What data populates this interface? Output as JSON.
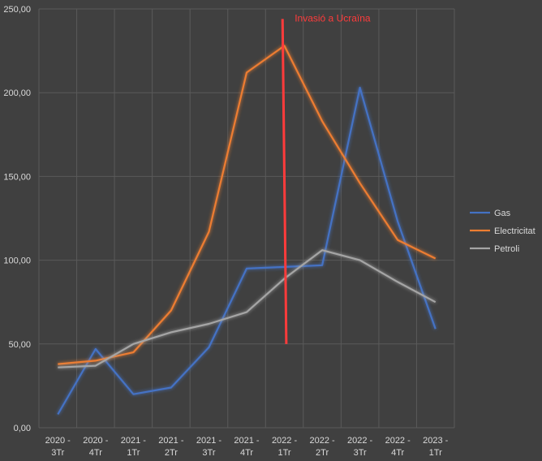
{
  "chart_data": {
    "type": "line",
    "title": "",
    "xlabel": "",
    "ylabel": "",
    "ylim": [
      0,
      250
    ],
    "yticks": [
      "0,00",
      "50,00",
      "100,00",
      "150,00",
      "200,00",
      "250,00"
    ],
    "ytick_values": [
      0,
      50,
      100,
      150,
      200,
      250
    ],
    "categories": [
      [
        "2020 -",
        "3Tr"
      ],
      [
        "2020 -",
        "4Tr"
      ],
      [
        "2021 -",
        "1Tr"
      ],
      [
        "2021 -",
        "2Tr"
      ],
      [
        "2021 -",
        "3Tr"
      ],
      [
        "2021 -",
        "4Tr"
      ],
      [
        "2022 -",
        "1Tr"
      ],
      [
        "2022 -",
        "2Tr"
      ],
      [
        "2022 -",
        "3Tr"
      ],
      [
        "2022 -",
        "4Tr"
      ],
      [
        "2023 -",
        "1Tr"
      ]
    ],
    "grid": true,
    "legend_position": "right",
    "series": [
      {
        "name": "Gas",
        "color": "#4472c4",
        "values": [
          8,
          47,
          20,
          24,
          48,
          95,
          96,
          97,
          203,
          123,
          59
        ]
      },
      {
        "name": "Electricitat",
        "color": "#ed7d31",
        "values": [
          38,
          40,
          45,
          70,
          117,
          212,
          228,
          183,
          146,
          112,
          101
        ]
      },
      {
        "name": "Petroli",
        "color": "#a5a5a5",
        "values": [
          36,
          37,
          50,
          57,
          62,
          69,
          89,
          106,
          100,
          87,
          75
        ]
      }
    ],
    "annotation": {
      "text": "Invasió a Ucraïna",
      "color": "#ff3b3b",
      "from": {
        "x": 5.95,
        "y": 244
      },
      "to": {
        "x": 6.05,
        "y": 50
      }
    }
  }
}
